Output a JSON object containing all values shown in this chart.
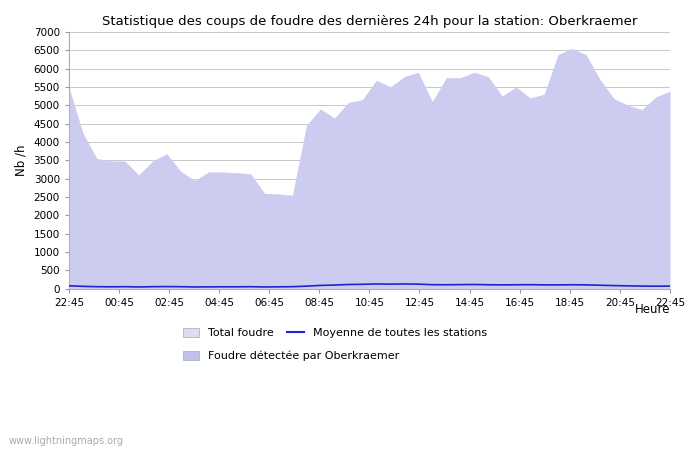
{
  "title": "Statistique des coups de foudre des dernières 24h pour la station: Oberkraemer",
  "ylabel": "Nb /h",
  "xlabel": "Heure",
  "watermark": "www.lightningmaps.org",
  "ylim": [
    0,
    7000
  ],
  "yticks": [
    0,
    500,
    1000,
    1500,
    2000,
    2500,
    3000,
    3500,
    4000,
    4500,
    5000,
    5500,
    6000,
    6500,
    7000
  ],
  "xtick_labels": [
    "22:45",
    "00:45",
    "02:45",
    "04:45",
    "06:45",
    "08:45",
    "10:45",
    "12:45",
    "14:45",
    "16:45",
    "18:45",
    "20:45",
    "22:45"
  ],
  "color_total": "#dcdcf5",
  "color_detected": "#c0c0ee",
  "color_mean_line": "#2222cc",
  "background_color": "#ffffff",
  "grid_color": "#c8c8c8",
  "total_foudre": [
    5500,
    4250,
    3550,
    3480,
    3480,
    3100,
    3480,
    3680,
    3200,
    2950,
    3180,
    3180,
    3160,
    3130,
    2600,
    2580,
    2550,
    4450,
    4900,
    4650,
    5080,
    5150,
    5680,
    5500,
    5780,
    5900,
    5100,
    5750,
    5750,
    5900,
    5780,
    5250,
    5500,
    5200,
    5300,
    6380,
    6550,
    6380,
    5700,
    5180,
    5000,
    4880,
    5230,
    5380
  ],
  "detected_oberkraemer": [
    5500,
    4250,
    3550,
    3480,
    3480,
    3100,
    3480,
    3680,
    3200,
    2950,
    3180,
    3180,
    3160,
    3130,
    2600,
    2580,
    2550,
    4450,
    4900,
    4650,
    5080,
    5150,
    5680,
    5500,
    5780,
    5900,
    5100,
    5750,
    5750,
    5900,
    5780,
    5250,
    5500,
    5200,
    5300,
    6380,
    6550,
    6380,
    5700,
    5180,
    5000,
    4880,
    5230,
    5380
  ],
  "mean_line": [
    80,
    65,
    55,
    52,
    55,
    48,
    55,
    58,
    55,
    48,
    50,
    52,
    52,
    55,
    48,
    52,
    55,
    70,
    90,
    100,
    115,
    120,
    130,
    125,
    130,
    125,
    110,
    108,
    112,
    115,
    108,
    105,
    108,
    110,
    105,
    105,
    108,
    105,
    95,
    85,
    78,
    72,
    68,
    72
  ]
}
